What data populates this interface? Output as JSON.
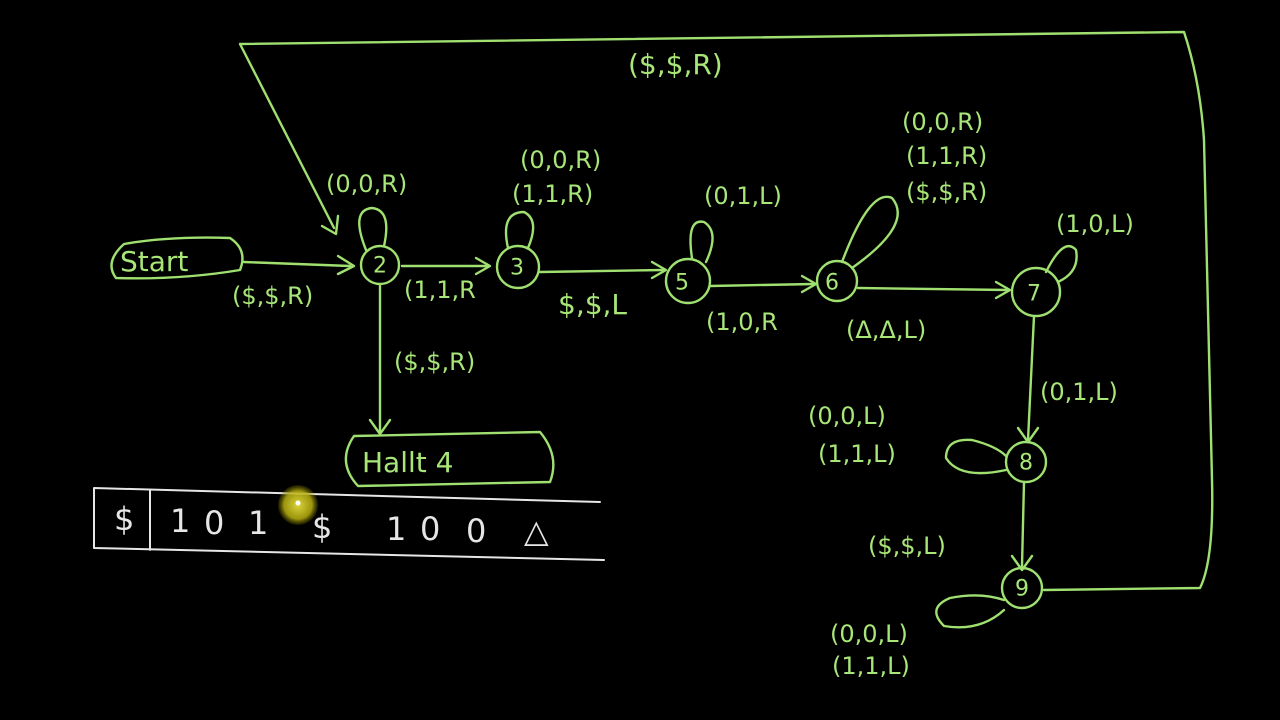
{
  "diagram": {
    "start_label": "Start",
    "halt_label": "Hallt 4",
    "states": [
      {
        "id": "2",
        "label": "2"
      },
      {
        "id": "3",
        "label": "3"
      },
      {
        "id": "5",
        "label": "5"
      },
      {
        "id": "6",
        "label": "6"
      },
      {
        "id": "7",
        "label": "7"
      },
      {
        "id": "8",
        "label": "8"
      },
      {
        "id": "9",
        "label": "9"
      }
    ],
    "transitions": {
      "top_loop": "($,$,R)",
      "start_to_2": "($,$,R)",
      "loop_2": "(0,0,R)",
      "s2_to_3": "(1,1,R",
      "s2_to_halt": "($,$,R)",
      "loop_3_a": "(0,0,R)",
      "loop_3_b": "(1,1,R)",
      "s3_to_5": "$,$,L",
      "loop_5": "(0,1,L)",
      "s5_to_6": "(1,0,R",
      "loop_6_a": "(0,0,R)",
      "loop_6_b": "(1,1,R)",
      "loop_6_c": "($,$,R)",
      "s6_to_7": "(Δ,Δ,L)",
      "loop_7": "(1,0,L)",
      "s7_to_8": "(0,1,L)",
      "loop_8_a": "(0,0,L)",
      "loop_8_b": "(1,1,L)",
      "s8_to_9": "($,$,L)",
      "loop_9_a": "(0,0,L)",
      "loop_9_b": "(1,1,L)"
    }
  },
  "tape": {
    "cells": [
      "$",
      "1",
      "0",
      "1",
      "$",
      "1",
      "0",
      "0",
      "△"
    ]
  },
  "colors": {
    "background": "#000000",
    "chalk_green": "#9fe070",
    "chalk_white": "#e6e6e6",
    "cursor": "#c8c020"
  }
}
